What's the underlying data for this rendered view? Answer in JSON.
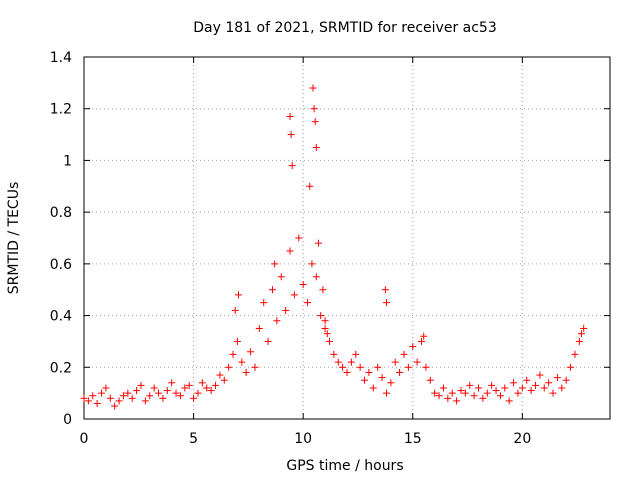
{
  "chart_data": {
    "type": "scatter",
    "title": "Day 181 of 2021, SRMTID for receiver ac53",
    "xlabel": "GPS time / hours",
    "ylabel": "SRMTID / TECUs",
    "xlim": [
      0,
      24
    ],
    "ylim": [
      0,
      1.4
    ],
    "x_ticks": [
      0,
      5,
      10,
      15,
      20
    ],
    "x_tick_labels": [
      "0",
      "5",
      "10",
      "15",
      "20"
    ],
    "y_ticks": [
      0,
      0.2,
      0.4,
      0.6,
      0.8,
      1.0,
      1.2,
      1.4
    ],
    "y_tick_labels": [
      "0",
      "0.2",
      "0.4",
      "0.6",
      "0.8",
      "1",
      "1.2",
      "1.4"
    ],
    "grid": true,
    "marker": "+",
    "series": [
      {
        "name": "SRMTID",
        "color": "#ff0000",
        "x": [
          0.0,
          0.2,
          0.4,
          0.6,
          0.8,
          1.0,
          1.2,
          1.4,
          1.6,
          1.8,
          2.0,
          2.2,
          2.4,
          2.6,
          2.8,
          3.0,
          3.2,
          3.4,
          3.6,
          3.8,
          4.0,
          4.2,
          4.4,
          4.6,
          4.8,
          5.0,
          5.2,
          5.4,
          5.6,
          5.8,
          6.0,
          6.2,
          6.4,
          6.6,
          6.8,
          7.0,
          7.2,
          7.4,
          7.6,
          7.8,
          8.0,
          8.2,
          8.4,
          8.6,
          8.8,
          9.0,
          9.2,
          9.4,
          9.6,
          9.8,
          10.0,
          10.2,
          10.4,
          10.6,
          10.8,
          11.0,
          11.2,
          11.4,
          11.6,
          11.8,
          12.0,
          12.2,
          12.4,
          12.6,
          12.8,
          13.0,
          13.2,
          13.4,
          13.6,
          13.8,
          14.0,
          14.2,
          14.4,
          14.6,
          14.8,
          15.0,
          15.2,
          15.4,
          15.6,
          15.8,
          16.0,
          16.2,
          16.4,
          16.6,
          16.8,
          17.0,
          17.2,
          17.4,
          17.6,
          17.8,
          18.0,
          18.2,
          18.4,
          18.6,
          18.8,
          19.0,
          19.2,
          19.4,
          19.6,
          19.8,
          20.0,
          20.2,
          20.4,
          20.6,
          20.8,
          21.0,
          21.2,
          21.4,
          21.6,
          21.8,
          22.0,
          22.2,
          22.4,
          22.6,
          22.8,
          9.4,
          9.45,
          10.45,
          10.5,
          10.3,
          10.6,
          10.55,
          9.5,
          13.75,
          13.8,
          15.5,
          22.7,
          7.05,
          6.9,
          8.7,
          11.0,
          11.1,
          10.7,
          10.9
        ],
        "values": [
          0.08,
          0.07,
          0.09,
          0.06,
          0.1,
          0.12,
          0.08,
          0.05,
          0.07,
          0.09,
          0.1,
          0.08,
          0.11,
          0.13,
          0.07,
          0.09,
          0.12,
          0.1,
          0.08,
          0.11,
          0.14,
          0.1,
          0.09,
          0.12,
          0.13,
          0.08,
          0.1,
          0.14,
          0.12,
          0.11,
          0.13,
          0.17,
          0.15,
          0.2,
          0.25,
          0.3,
          0.22,
          0.18,
          0.26,
          0.2,
          0.35,
          0.45,
          0.3,
          0.5,
          0.38,
          0.55,
          0.42,
          0.65,
          0.48,
          0.7,
          0.52,
          0.45,
          0.6,
          0.55,
          0.4,
          0.35,
          0.3,
          0.25,
          0.22,
          0.2,
          0.18,
          0.22,
          0.25,
          0.2,
          0.15,
          0.18,
          0.12,
          0.2,
          0.16,
          0.1,
          0.14,
          0.22,
          0.18,
          0.25,
          0.2,
          0.28,
          0.22,
          0.3,
          0.2,
          0.15,
          0.1,
          0.09,
          0.12,
          0.08,
          0.1,
          0.07,
          0.11,
          0.1,
          0.13,
          0.09,
          0.12,
          0.08,
          0.1,
          0.13,
          0.11,
          0.09,
          0.12,
          0.07,
          0.14,
          0.1,
          0.12,
          0.15,
          0.11,
          0.13,
          0.17,
          0.12,
          0.14,
          0.1,
          0.16,
          0.12,
          0.15,
          0.2,
          0.25,
          0.3,
          0.35,
          1.17,
          1.1,
          1.28,
          1.2,
          0.9,
          1.05,
          1.15,
          0.98,
          0.5,
          0.45,
          0.32,
          0.33,
          0.48,
          0.42,
          0.6,
          0.38,
          0.33,
          0.68,
          0.5
        ]
      }
    ]
  }
}
